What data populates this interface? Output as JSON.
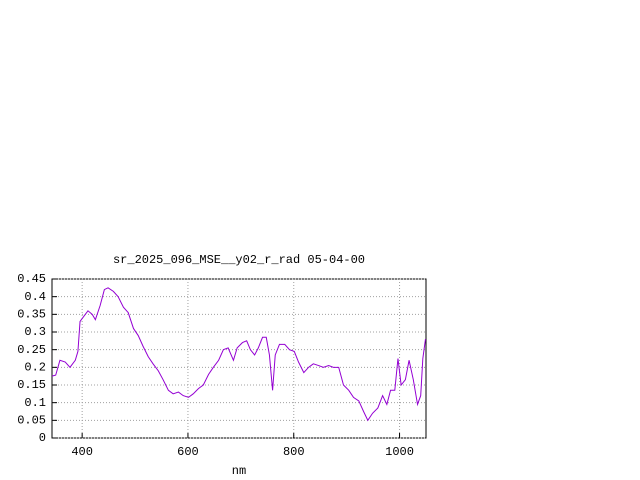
{
  "chart_data": {
    "type": "line",
    "title": "sr_2025_096_MSE__y02_r_rad 05-04-00",
    "x_label": "nm",
    "x": [
      343,
      350,
      358,
      368,
      377,
      387,
      392,
      396,
      406,
      411,
      419,
      425,
      434,
      442,
      449,
      459,
      468,
      478,
      487,
      497,
      506,
      515,
      525,
      534,
      544,
      553,
      563,
      572,
      582,
      591,
      601,
      610,
      620,
      629,
      639,
      648,
      658,
      667,
      676,
      686,
      693,
      703,
      711,
      718,
      726,
      733,
      741,
      748,
      754,
      760,
      765,
      773,
      783,
      792,
      801,
      809,
      819,
      828,
      837,
      847,
      856,
      866,
      875,
      885,
      894,
      904,
      913,
      923,
      932,
      940,
      949,
      959,
      968,
      976,
      983,
      991,
      997,
      1003,
      1011,
      1018,
      1026,
      1034,
      1040,
      1044,
      1049
    ],
    "series": [
      {
        "color": "#9400d3",
        "values": [
          0.175,
          0.178,
          0.22,
          0.215,
          0.2,
          0.22,
          0.245,
          0.33,
          0.35,
          0.36,
          0.35,
          0.335,
          0.375,
          0.42,
          0.425,
          0.415,
          0.4,
          0.37,
          0.355,
          0.31,
          0.29,
          0.26,
          0.23,
          0.21,
          0.19,
          0.165,
          0.135,
          0.125,
          0.13,
          0.12,
          0.115,
          0.125,
          0.14,
          0.15,
          0.18,
          0.2,
          0.22,
          0.25,
          0.255,
          0.22,
          0.255,
          0.27,
          0.275,
          0.25,
          0.235,
          0.255,
          0.285,
          0.285,
          0.235,
          0.135,
          0.235,
          0.265,
          0.265,
          0.25,
          0.245,
          0.215,
          0.185,
          0.2,
          0.21,
          0.205,
          0.2,
          0.205,
          0.2,
          0.2,
          0.15,
          0.135,
          0.115,
          0.105,
          0.075,
          0.05,
          0.07,
          0.085,
          0.12,
          0.095,
          0.135,
          0.135,
          0.225,
          0.15,
          0.165,
          0.22,
          0.165,
          0.095,
          0.12,
          0.225,
          0.28
        ]
      }
    ],
    "xlim": [
      343,
      1050
    ],
    "ylim": [
      0,
      0.45
    ],
    "xticks": [
      400,
      600,
      800,
      1000
    ],
    "yticks": [
      0,
      0.05,
      0.1,
      0.15,
      0.2,
      0.25,
      0.3,
      0.35,
      0.4,
      0.45
    ],
    "grid": true
  }
}
